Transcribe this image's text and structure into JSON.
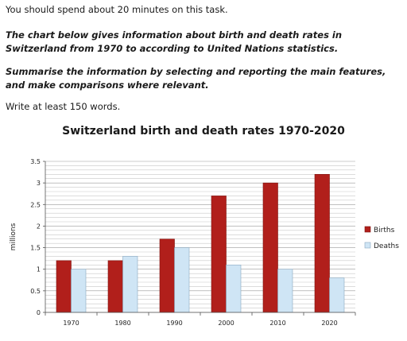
{
  "task": {
    "intro": "You should spend about 20 minutes on this task.",
    "description": "The chart below gives information about birth and death rates in Switzerland from 1970 to according to United Nations statistics.",
    "instruction": "Summarise the information by selecting and reporting the main features, and make comparisons where relevant.",
    "min_words": "Write at least 150 words."
  },
  "chart_data": {
    "type": "bar",
    "title": "Switzerland birth and death rates 1970-2020",
    "xlabel": "",
    "ylabel": "millions",
    "categories": [
      "1970",
      "1980",
      "1990",
      "2000",
      "2010",
      "2020"
    ],
    "series": [
      {
        "name": "Births",
        "values": [
          1.2,
          1.2,
          1.7,
          2.7,
          3.0,
          3.2
        ],
        "color": "#b11f1b"
      },
      {
        "name": "Deaths",
        "values": [
          1.0,
          1.3,
          1.5,
          1.1,
          1.0,
          0.8
        ],
        "color": "#cfe5f5"
      }
    ],
    "ylim": [
      0,
      3.5
    ],
    "yticks": [
      "0",
      "0.5",
      "1",
      "1.5",
      "2",
      "2.5",
      "3",
      "3.5"
    ],
    "grid": true,
    "legend_position": "right"
  }
}
